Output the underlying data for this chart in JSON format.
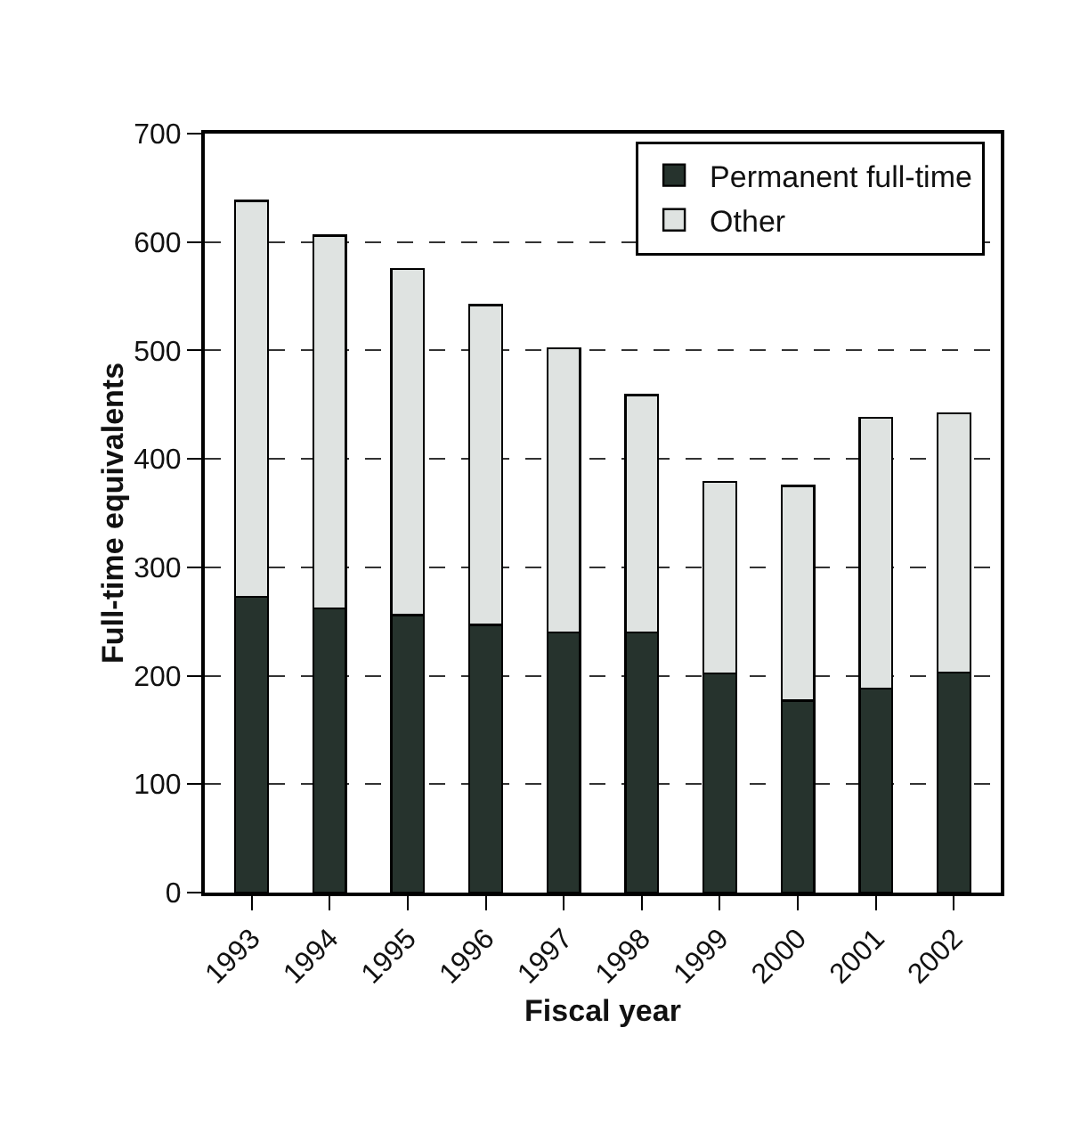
{
  "chart_data": {
    "type": "bar",
    "stacked": true,
    "xlabel": "Fiscal year",
    "ylabel": "Full-time equivalents",
    "categories": [
      "1993",
      "1994",
      "1995",
      "1996",
      "1997",
      "1998",
      "1999",
      "2000",
      "2001",
      "2002"
    ],
    "series": [
      {
        "name": "Permanent full-time",
        "color": "#26332d",
        "values": [
          273,
          262,
          256,
          247,
          240,
          240,
          202,
          177,
          188,
          203
        ]
      },
      {
        "name": "Other",
        "color": "#dfe3e1",
        "values": [
          365,
          344,
          319,
          295,
          262,
          219,
          177,
          198,
          250,
          239
        ]
      }
    ],
    "ylim": [
      0,
      700
    ],
    "yticks": [
      0,
      100,
      200,
      300,
      400,
      500,
      600,
      700
    ],
    "grid": "y",
    "legend": "top right"
  }
}
